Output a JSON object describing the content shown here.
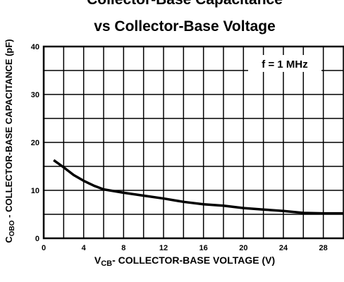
{
  "chart_data": {
    "type": "line",
    "title": [
      "Collector-Base Capacitance",
      "vs Collector-Base Voltage"
    ],
    "y_label": {
      "symbol": "C",
      "subscript": "OBO",
      "text": " - COLLECTOR-BASE CAPACITANCE (pF)"
    },
    "x_label": {
      "symbol": "V",
      "subscript": "CB",
      "text": "- COLLECTOR-BASE VOLTAGE (V)"
    },
    "annotation": "f = 1 MHz",
    "x": [
      1,
      2,
      3,
      4,
      5,
      6,
      8,
      10,
      12,
      14,
      16,
      18,
      20,
      22,
      24,
      26,
      28,
      30
    ],
    "series": [
      {
        "color": "#000000",
        "values": [
          16.3,
          14.8,
          13.2,
          12,
          11,
          10.2,
          9.5,
          8.9,
          8.3,
          7.6,
          7.1,
          6.8,
          6.3,
          6.0,
          5.7,
          5.3,
          5.2,
          5.2
        ]
      }
    ],
    "xlim": [
      0,
      30
    ],
    "ylim": [
      0,
      40
    ],
    "xticks": [
      0,
      4,
      8,
      12,
      16,
      20,
      24,
      28
    ],
    "xminor": [
      2,
      6,
      10,
      14,
      18,
      22,
      26,
      30
    ],
    "yticks": [
      0,
      10,
      20,
      30,
      40
    ],
    "yminor": [
      5,
      15,
      25,
      35
    ],
    "grid": true
  }
}
